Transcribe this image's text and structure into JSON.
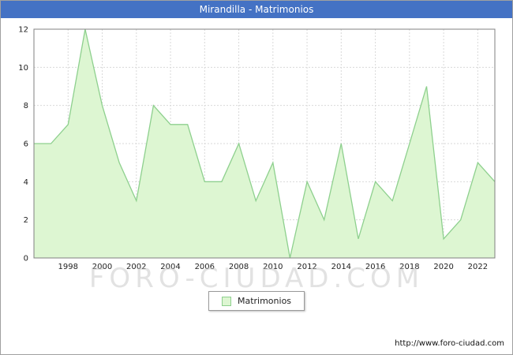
{
  "window": {
    "title": "Mirandilla - Matrimonios"
  },
  "legend": {
    "label": "Matrimonios"
  },
  "footer": {
    "url": "http://www.foro-ciudad.com"
  },
  "watermark": "FORO-CIUDAD.COM",
  "chart_data": {
    "type": "area",
    "title": "Mirandilla - Matrimonios",
    "x": [
      1996,
      1997,
      1998,
      1999,
      2000,
      2001,
      2002,
      2003,
      2004,
      2005,
      2006,
      2007,
      2008,
      2009,
      2010,
      2011,
      2012,
      2013,
      2014,
      2015,
      2016,
      2017,
      2018,
      2019,
      2020,
      2021,
      2022,
      2023
    ],
    "values": [
      6,
      6,
      7,
      12,
      8,
      5,
      3,
      8,
      7,
      7,
      4,
      4,
      6,
      3,
      5,
      0,
      4,
      2,
      6,
      1,
      4,
      3,
      6,
      9,
      1,
      2,
      5,
      4
    ],
    "ylim": [
      0,
      12
    ],
    "yticks": [
      0,
      2,
      4,
      6,
      8,
      10,
      12
    ],
    "xticks": [
      1998,
      2000,
      2002,
      2004,
      2006,
      2008,
      2010,
      2012,
      2014,
      2016,
      2018,
      2020,
      2022
    ],
    "xlabel": "",
    "ylabel": "",
    "legend_entries": [
      "Matrimonios"
    ],
    "legend_position": "bottom-center",
    "grid": true,
    "fill_color": "#ddf6d2",
    "line_color": "#8ed08e",
    "titlebar_color": "#4472c4"
  }
}
